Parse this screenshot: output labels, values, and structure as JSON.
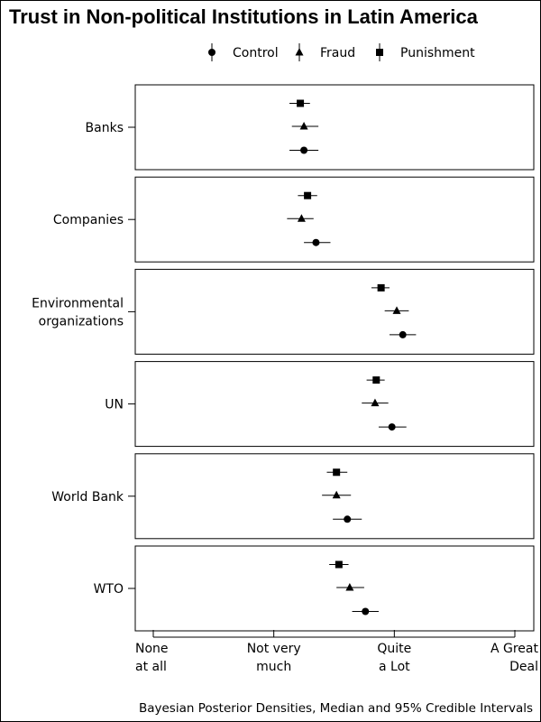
{
  "chart_data": {
    "type": "scatter",
    "title": "Trust in Non-political Institutions in Latin America",
    "caption": "Bayesian Posterior Densities, Median and 95% Credible Intervals",
    "x_ticks": [
      {
        "value": 1,
        "lines": [
          "None",
          "at all"
        ]
      },
      {
        "value": 2,
        "lines": [
          "Not very",
          "much"
        ]
      },
      {
        "value": 3,
        "lines": [
          "Quite",
          "a Lot"
        ]
      },
      {
        "value": 4,
        "lines": [
          "A Great",
          "Deal"
        ]
      }
    ],
    "xlim": [
      0.85,
      4.15
    ],
    "legend_position": "top",
    "series": [
      {
        "name": "Control",
        "marker": "circle"
      },
      {
        "name": "Fraud",
        "marker": "triangle"
      },
      {
        "name": "Punishment",
        "marker": "square"
      }
    ],
    "panels": [
      {
        "lines": [
          "Banks"
        ],
        "estimates": {
          "Punishment": {
            "median": 2.22,
            "low": 2.13,
            "high": 2.3
          },
          "Fraud": {
            "median": 2.25,
            "low": 2.15,
            "high": 2.37
          },
          "Control": {
            "median": 2.25,
            "low": 2.13,
            "high": 2.37
          }
        }
      },
      {
        "lines": [
          "Companies"
        ],
        "estimates": {
          "Punishment": {
            "median": 2.28,
            "low": 2.2,
            "high": 2.36
          },
          "Fraud": {
            "median": 2.23,
            "low": 2.11,
            "high": 2.33
          },
          "Control": {
            "median": 2.35,
            "low": 2.25,
            "high": 2.47
          }
        }
      },
      {
        "lines": [
          "Environmental",
          "organizations"
        ],
        "estimates": {
          "Punishment": {
            "median": 2.89,
            "low": 2.81,
            "high": 2.96
          },
          "Fraud": {
            "median": 3.02,
            "low": 2.92,
            "high": 3.12
          },
          "Control": {
            "median": 3.07,
            "low": 2.96,
            "high": 3.18
          }
        }
      },
      {
        "lines": [
          "UN"
        ],
        "estimates": {
          "Punishment": {
            "median": 2.85,
            "low": 2.77,
            "high": 2.92
          },
          "Fraud": {
            "median": 2.84,
            "low": 2.73,
            "high": 2.95
          },
          "Control": {
            "median": 2.98,
            "low": 2.87,
            "high": 3.1
          }
        }
      },
      {
        "lines": [
          "World Bank"
        ],
        "estimates": {
          "Punishment": {
            "median": 2.52,
            "low": 2.44,
            "high": 2.61
          },
          "Fraud": {
            "median": 2.52,
            "low": 2.4,
            "high": 2.64
          },
          "Control": {
            "median": 2.61,
            "low": 2.49,
            "high": 2.73
          }
        }
      },
      {
        "lines": [
          "WTO"
        ],
        "estimates": {
          "Punishment": {
            "median": 2.54,
            "low": 2.46,
            "high": 2.62
          },
          "Fraud": {
            "median": 2.63,
            "low": 2.52,
            "high": 2.75
          },
          "Control": {
            "median": 2.76,
            "low": 2.65,
            "high": 2.87
          }
        }
      }
    ]
  }
}
